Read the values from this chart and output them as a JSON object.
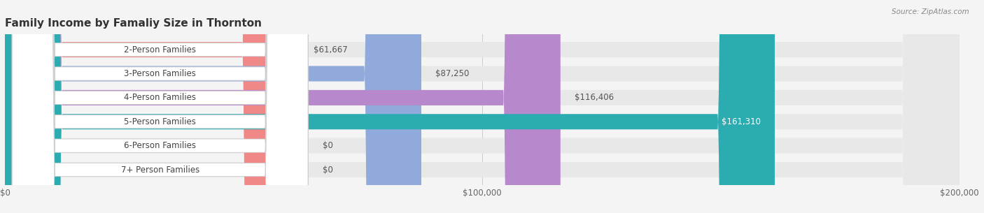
{
  "title": "Family Income by Famaliy Size in Thornton",
  "source": "Source: ZipAtlas.com",
  "categories": [
    "2-Person Families",
    "3-Person Families",
    "4-Person Families",
    "5-Person Families",
    "6-Person Families",
    "7+ Person Families"
  ],
  "values": [
    61667,
    87250,
    116406,
    161310,
    0,
    0
  ],
  "bar_colors": [
    "#F08888",
    "#90AADC",
    "#B888CC",
    "#2AACB0",
    "#AAAADD",
    "#F0A0B8"
  ],
  "value_label_colors": [
    "#555555",
    "#555555",
    "#555555",
    "#ffffff",
    "#555555",
    "#555555"
  ],
  "value_labels": [
    "$61,667",
    "$87,250",
    "$116,406",
    "$161,310",
    "$0",
    "$0"
  ],
  "xlim": [
    0,
    200000
  ],
  "xtick_values": [
    0,
    100000,
    200000
  ],
  "xtick_labels": [
    "$0",
    "$100,000",
    "$200,000"
  ],
  "background_color": "#f4f4f4",
  "bar_background_color": "#e8e8e8",
  "title_fontsize": 11,
  "tick_fontsize": 8.5,
  "label_fontsize": 8.5,
  "value_fontsize": 8.5,
  "bar_height": 0.64
}
